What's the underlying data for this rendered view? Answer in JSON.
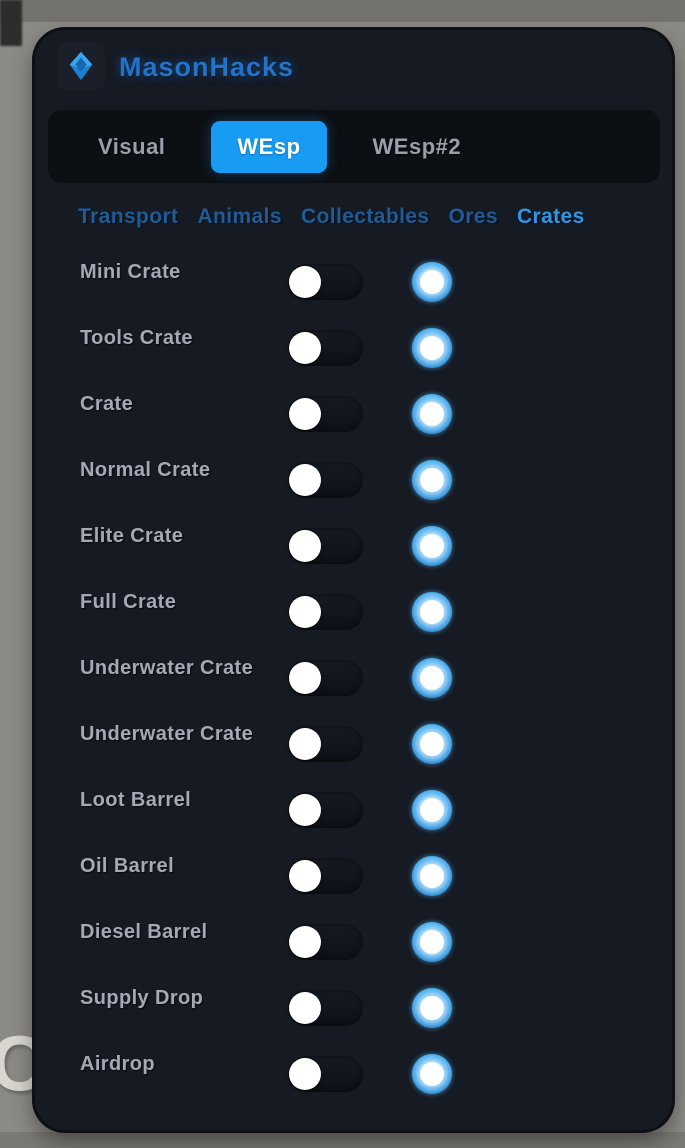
{
  "background": {
    "big_text": "CT"
  },
  "header": {
    "title": "MasonHacks",
    "logo_icon": "gem-icon"
  },
  "tabs": {
    "items": [
      {
        "label": "Visual",
        "active": false
      },
      {
        "label": "WEsp",
        "active": true
      },
      {
        "label": "WEsp#2",
        "active": false
      }
    ]
  },
  "subtabs": {
    "items": [
      {
        "label": "Transport",
        "active": false
      },
      {
        "label": "Animals",
        "active": false
      },
      {
        "label": "Collectables",
        "active": false
      },
      {
        "label": "Ores",
        "active": false
      },
      {
        "label": "Crates",
        "active": true
      }
    ]
  },
  "rows": [
    {
      "label": "Mini Crate",
      "toggle": "off"
    },
    {
      "label": "Tools Crate",
      "toggle": "off"
    },
    {
      "label": "Crate",
      "toggle": "off"
    },
    {
      "label": "Normal Crate",
      "toggle": "off"
    },
    {
      "label": "Elite Crate",
      "toggle": "off"
    },
    {
      "label": "Full Crate",
      "toggle": "off"
    },
    {
      "label": "Underwater Crate",
      "toggle": "off"
    },
    {
      "label": "Underwater Crate",
      "toggle": "off"
    },
    {
      "label": "Loot Barrel",
      "toggle": "off"
    },
    {
      "label": "Oil Barrel",
      "toggle": "off"
    },
    {
      "label": "Diesel Barrel",
      "toggle": "off"
    },
    {
      "label": "Supply Drop",
      "toggle": "off"
    },
    {
      "label": "Airdrop",
      "toggle": "off"
    }
  ],
  "colors": {
    "accent_tab": "#189bf2",
    "title_blue": "#2273c9",
    "subtab_active": "#2f96e8",
    "subtab_inactive": "#1e5b99",
    "panel_bg": "#151a23",
    "swatch_ring": "#2d9fee",
    "swatch_center": "#ffffff",
    "toggle_knob": "#ffffff",
    "background_gray": "#8b8a85"
  }
}
